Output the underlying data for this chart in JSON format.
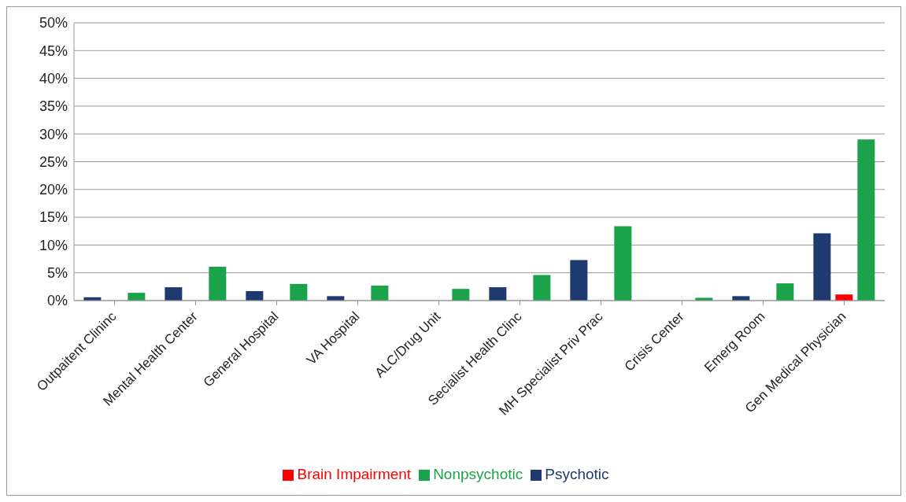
{
  "chart_data": {
    "type": "bar",
    "categories": [
      "Outpaitent Clininc",
      "Mental Health Center",
      "General Hospital",
      "VA Hospital",
      "ALC/Drug Unit",
      "Secialist Health Clinc",
      "MH Specialist Priv Prac",
      "Crisis Center",
      "Emerg Room",
      "Gen Medical Physician"
    ],
    "series": [
      {
        "name": "Psychotic",
        "color": "#1f3a6e",
        "values": [
          0.6,
          2.4,
          1.7,
          0.8,
          0,
          2.4,
          7.3,
          0,
          0.8,
          12.1
        ]
      },
      {
        "name": "Brain Impairment",
        "color": "#ff0000",
        "values": [
          0,
          0,
          0,
          0,
          0,
          0,
          0,
          0,
          0,
          1.1
        ]
      },
      {
        "name": "Nonpsychotic",
        "color": "#1aa34a",
        "values": [
          1.4,
          6.1,
          3.0,
          2.7,
          2.1,
          4.6,
          13.4,
          0.5,
          3.1,
          29.0
        ]
      }
    ],
    "ylim": [
      0,
      50
    ],
    "yticks": [
      {
        "value": 0,
        "label": "0%"
      },
      {
        "value": 5,
        "label": "5%"
      },
      {
        "value": 10,
        "label": "10%"
      },
      {
        "value": 15,
        "label": "15%"
      },
      {
        "value": 20,
        "label": "20%"
      },
      {
        "value": 25,
        "label": "25%"
      },
      {
        "value": 30,
        "label": "30%"
      },
      {
        "value": 35,
        "label": "35%"
      },
      {
        "value": 40,
        "label": "40%"
      },
      {
        "value": 45,
        "label": "45%"
      },
      {
        "value": 50,
        "label": "50%"
      }
    ],
    "grid": "y",
    "legend": "bottom"
  }
}
